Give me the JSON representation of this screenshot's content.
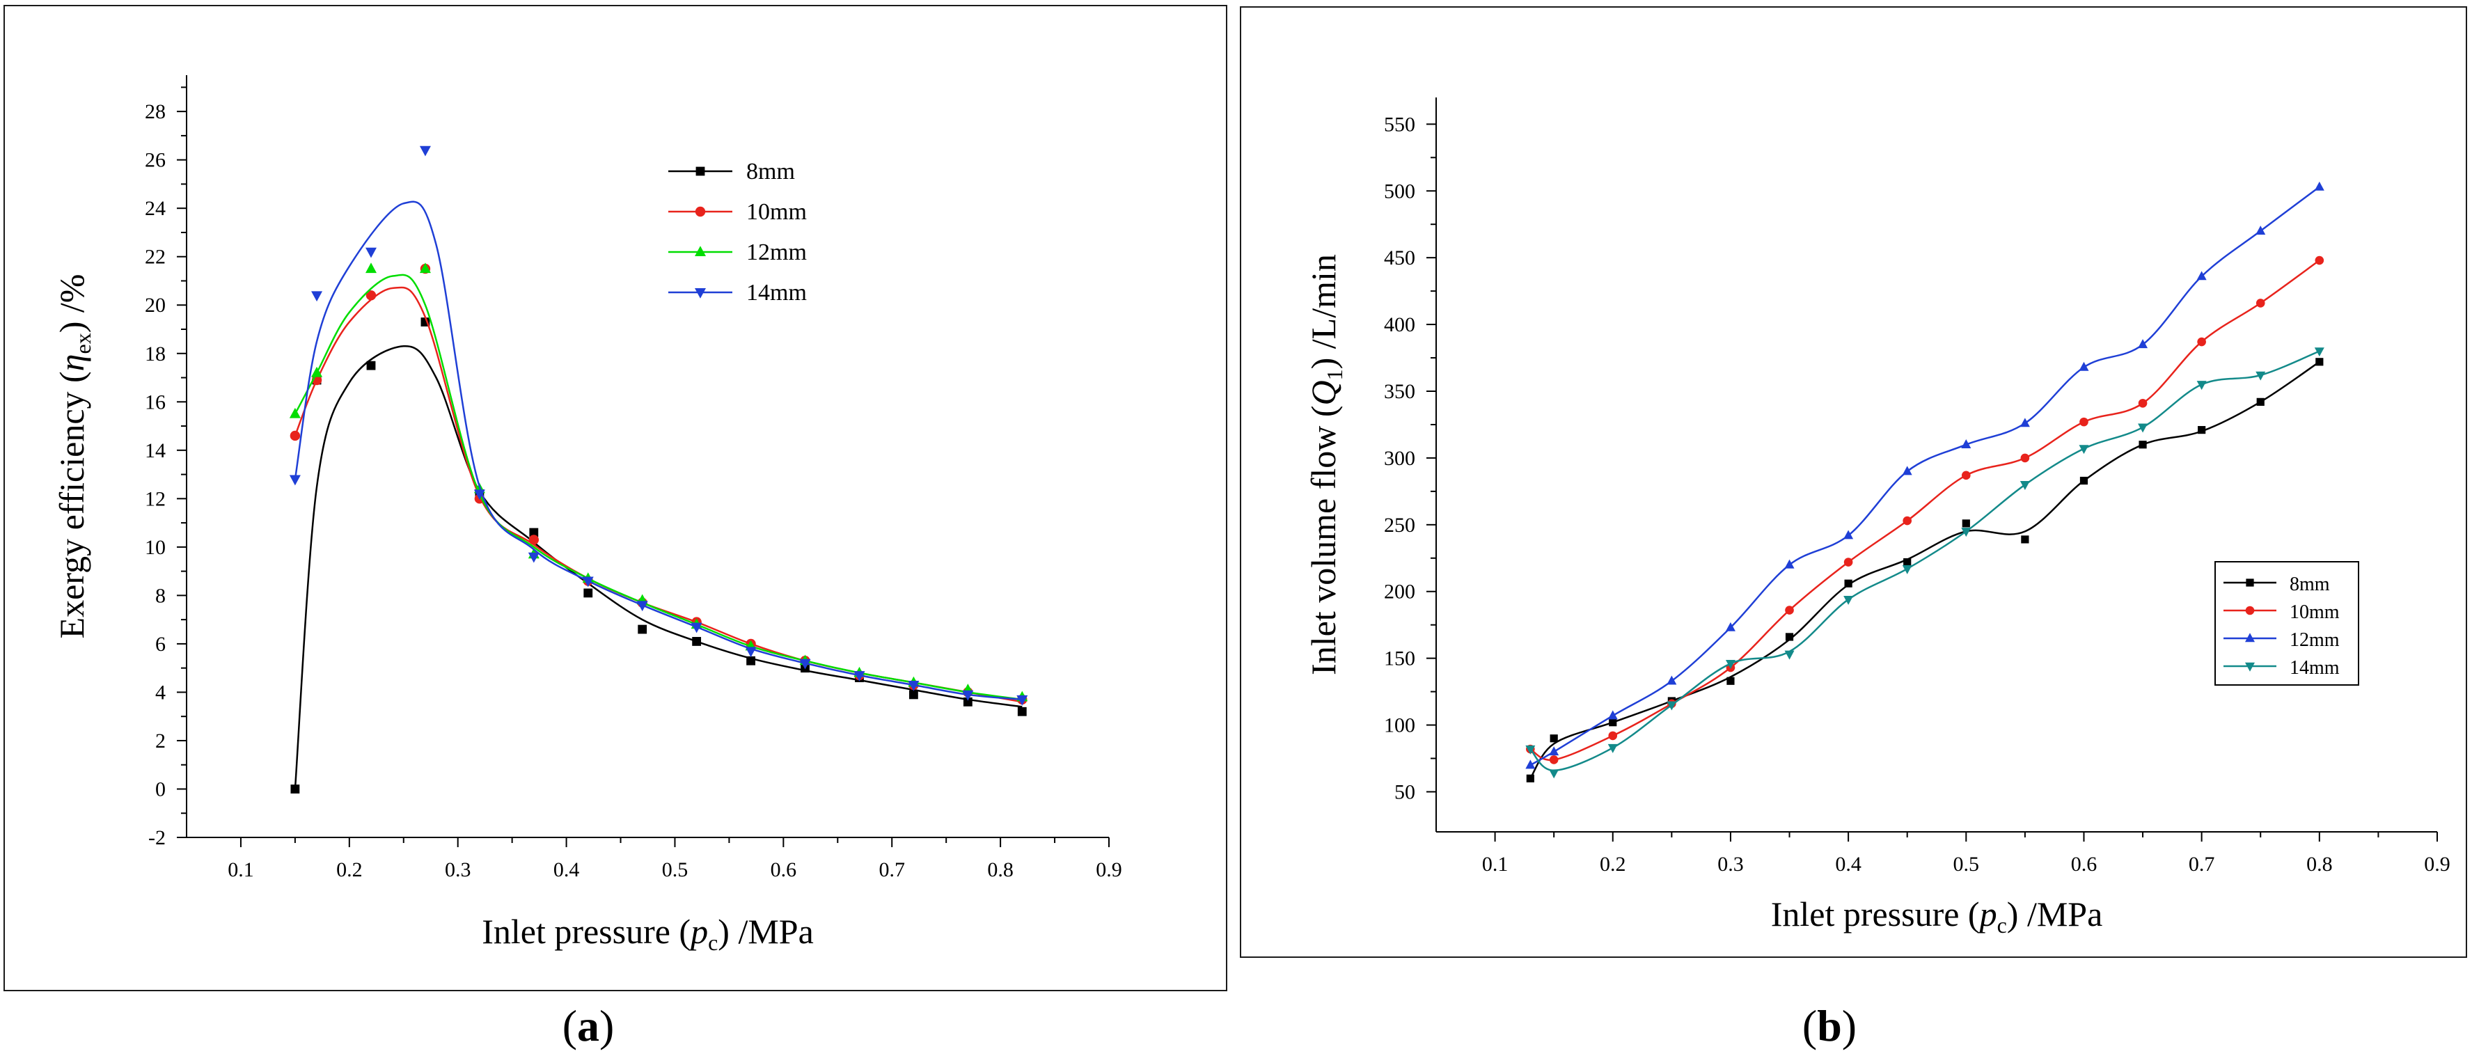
{
  "chart_data": [
    {
      "type": "line",
      "panel_label": "(a)",
      "panel_letter": "a",
      "xlabel": "Inlet pressure (pᶜ) /MPa",
      "xlabel_parts": {
        "before": "Inlet pressure (",
        "italic": "p",
        "sub": "c",
        "after": ") /MPa"
      },
      "ylabel": "Exergy efficiency (ηex) /%",
      "ylabel_parts": {
        "before": "Exergy efficiency (",
        "italic": "η",
        "sub": "ex",
        "after": ") /%"
      },
      "xlim": [
        0.05,
        0.9
      ],
      "ylim": [
        -2,
        29.5
      ],
      "xticks": [
        0.1,
        0.2,
        0.3,
        0.4,
        0.5,
        0.6,
        0.7,
        0.8,
        0.9
      ],
      "xtick_labels": [
        "0.1",
        "0.2",
        "0.3",
        "0.4",
        "0.5",
        "0.6",
        "0.7",
        "0.8",
        "0.9"
      ],
      "yticks": [
        -2,
        0,
        2,
        4,
        6,
        8,
        10,
        12,
        14,
        16,
        18,
        20,
        22,
        24,
        26,
        28
      ],
      "ytick_labels": [
        "-2",
        "0",
        "2",
        "4",
        "6",
        "8",
        "10",
        "12",
        "14",
        "16",
        "18",
        "20",
        "22",
        "24",
        "26",
        "28"
      ],
      "legend_position": "top-center",
      "series": [
        {
          "name": "8mm",
          "color": "#000000",
          "marker": "square",
          "x": [
            0.15,
            0.17,
            0.22,
            0.27,
            0.32,
            0.37,
            0.42,
            0.47,
            0.52,
            0.57,
            0.62,
            0.67,
            0.72,
            0.77,
            0.82
          ],
          "y": [
            0.0,
            16.9,
            17.5,
            19.3,
            12.2,
            10.6,
            8.1,
            6.6,
            6.1,
            5.3,
            5.0,
            4.6,
            3.9,
            3.6,
            3.2
          ],
          "curve_x": [
            0.15,
            0.17,
            0.2,
            0.25,
            0.28,
            0.32,
            0.37,
            0.42,
            0.47,
            0.52,
            0.57,
            0.62,
            0.67,
            0.72,
            0.77,
            0.82
          ],
          "curve_y": [
            0.0,
            12.5,
            16.8,
            18.3,
            17.0,
            12.3,
            10.2,
            8.5,
            7.0,
            6.1,
            5.4,
            4.9,
            4.5,
            4.1,
            3.7,
            3.4
          ]
        },
        {
          "name": "10mm",
          "color": "#e8231c",
          "marker": "circle",
          "x": [
            0.15,
            0.17,
            0.22,
            0.27,
            0.32,
            0.37,
            0.42,
            0.47,
            0.52,
            0.57,
            0.62,
            0.67,
            0.72,
            0.77,
            0.82
          ],
          "y": [
            14.6,
            16.9,
            20.4,
            21.5,
            12.0,
            10.3,
            8.6,
            7.7,
            6.9,
            6.0,
            5.3,
            4.7,
            4.3,
            4.0,
            3.7
          ],
          "curve_x": [
            0.15,
            0.17,
            0.2,
            0.24,
            0.27,
            0.32,
            0.37,
            0.42,
            0.47,
            0.52,
            0.57,
            0.62,
            0.67,
            0.72,
            0.77,
            0.82
          ],
          "curve_y": [
            14.6,
            16.9,
            19.3,
            20.7,
            19.5,
            12.1,
            10.1,
            8.7,
            7.7,
            6.9,
            6.0,
            5.3,
            4.8,
            4.4,
            4.0,
            3.6
          ]
        },
        {
          "name": "12mm",
          "color": "#00dd00",
          "marker": "triangle-up",
          "x": [
            0.15,
            0.17,
            0.22,
            0.27,
            0.32,
            0.37,
            0.42,
            0.47,
            0.52,
            0.57,
            0.62,
            0.67,
            0.72,
            0.77,
            0.82
          ],
          "y": [
            15.5,
            17.2,
            21.5,
            21.5,
            12.4,
            9.7,
            8.7,
            7.8,
            6.8,
            5.9,
            5.3,
            4.8,
            4.4,
            4.1,
            3.8
          ],
          "curve_x": [
            0.15,
            0.17,
            0.2,
            0.24,
            0.27,
            0.32,
            0.37,
            0.42,
            0.47,
            0.52,
            0.57,
            0.62,
            0.67,
            0.72,
            0.77,
            0.82
          ],
          "curve_y": [
            15.5,
            17.2,
            19.7,
            21.2,
            20.0,
            12.2,
            10.0,
            8.7,
            7.7,
            6.8,
            5.9,
            5.3,
            4.8,
            4.4,
            4.0,
            3.7
          ]
        },
        {
          "name": "14mm",
          "color": "#1f3fd6",
          "marker": "triangle-down",
          "x": [
            0.15,
            0.17,
            0.22,
            0.27,
            0.32,
            0.37,
            0.42,
            0.47,
            0.52,
            0.57,
            0.62,
            0.67,
            0.72,
            0.77,
            0.82
          ],
          "y": [
            12.8,
            20.4,
            22.2,
            26.4,
            12.2,
            9.6,
            8.6,
            7.6,
            6.7,
            5.7,
            5.2,
            4.7,
            4.3,
            3.9,
            3.7
          ],
          "curve_x": [
            0.15,
            0.17,
            0.2,
            0.25,
            0.28,
            0.32,
            0.37,
            0.42,
            0.47,
            0.52,
            0.57,
            0.62,
            0.67,
            0.72,
            0.77,
            0.82
          ],
          "curve_y": [
            12.8,
            18.5,
            21.6,
            24.2,
            22.5,
            12.5,
            9.9,
            8.6,
            7.6,
            6.7,
            5.8,
            5.2,
            4.7,
            4.3,
            3.9,
            3.7
          ]
        }
      ]
    },
    {
      "type": "line",
      "panel_label": "(b)",
      "panel_letter": "b",
      "xlabel": "Inlet pressure (pᶜ) /MPa",
      "xlabel_parts": {
        "before": "Inlet pressure (",
        "italic": "p",
        "sub": "c",
        "after": ") /MPa"
      },
      "ylabel": "Inlet volume flow (Q₁) /L/min",
      "ylabel_parts": {
        "before": "Inlet volume flow (",
        "italic": "Q",
        "sub": "1",
        "after": ") /L/min"
      },
      "xlim": [
        0.05,
        0.9
      ],
      "ylim": [
        20,
        570
      ],
      "xticks": [
        0.1,
        0.2,
        0.3,
        0.4,
        0.5,
        0.6,
        0.7,
        0.8,
        0.9
      ],
      "xtick_labels": [
        "0.1",
        "0.2",
        "0.3",
        "0.4",
        "0.5",
        "0.6",
        "0.7",
        "0.8",
        "0.9"
      ],
      "yticks": [
        50,
        100,
        150,
        200,
        250,
        300,
        350,
        400,
        450,
        500,
        550
      ],
      "ytick_labels": [
        "50",
        "100",
        "150",
        "200",
        "250",
        "300",
        "350",
        "400",
        "450",
        "500",
        "550"
      ],
      "legend_position": "bottom-right",
      "series": [
        {
          "name": "8mm",
          "color": "#000000",
          "marker": "square",
          "x": [
            0.13,
            0.15,
            0.2,
            0.25,
            0.3,
            0.35,
            0.4,
            0.45,
            0.5,
            0.55,
            0.6,
            0.65,
            0.7,
            0.75,
            0.8
          ],
          "y": [
            60,
            90,
            102,
            118,
            133,
            166,
            206,
            222,
            251,
            239,
            283,
            310,
            321,
            342,
            372
          ],
          "curve_x": [
            0.13,
            0.15,
            0.2,
            0.25,
            0.3,
            0.35,
            0.4,
            0.45,
            0.5,
            0.55,
            0.6,
            0.65,
            0.7,
            0.75,
            0.8
          ],
          "curve_y": [
            60,
            86,
            102,
            118,
            136,
            164,
            205,
            224,
            245,
            245,
            283,
            310,
            320,
            342,
            372
          ]
        },
        {
          "name": "10mm",
          "color": "#e8231c",
          "marker": "circle",
          "x": [
            0.13,
            0.15,
            0.2,
            0.25,
            0.3,
            0.35,
            0.4,
            0.45,
            0.5,
            0.55,
            0.6,
            0.65,
            0.7,
            0.75,
            0.8
          ],
          "y": [
            82,
            74,
            92,
            116,
            143,
            186,
            222,
            253,
            287,
            300,
            327,
            341,
            387,
            416,
            448
          ],
          "curve_x": [
            0.13,
            0.15,
            0.2,
            0.25,
            0.3,
            0.35,
            0.4,
            0.45,
            0.5,
            0.55,
            0.6,
            0.65,
            0.7,
            0.75,
            0.8
          ],
          "curve_y": [
            82,
            74,
            92,
            116,
            143,
            186,
            222,
            253,
            287,
            300,
            327,
            341,
            387,
            416,
            448
          ]
        },
        {
          "name": "12mm",
          "color": "#1f3fd6",
          "marker": "triangle-up",
          "x": [
            0.13,
            0.15,
            0.2,
            0.25,
            0.3,
            0.35,
            0.4,
            0.45,
            0.5,
            0.55,
            0.6,
            0.65,
            0.7,
            0.75,
            0.8
          ],
          "y": [
            70,
            80,
            107,
            133,
            173,
            220,
            242,
            290,
            310,
            326,
            368,
            385,
            436,
            470,
            503
          ],
          "curve_x": [
            0.13,
            0.15,
            0.2,
            0.25,
            0.3,
            0.35,
            0.4,
            0.45,
            0.5,
            0.55,
            0.6,
            0.65,
            0.7,
            0.75,
            0.8
          ],
          "curve_y": [
            70,
            80,
            107,
            133,
            173,
            220,
            242,
            290,
            310,
            326,
            368,
            385,
            436,
            470,
            503
          ]
        },
        {
          "name": "14mm",
          "color": "#138a8a",
          "marker": "triangle-down",
          "x": [
            0.13,
            0.15,
            0.2,
            0.25,
            0.3,
            0.35,
            0.4,
            0.45,
            0.5,
            0.55,
            0.6,
            0.65,
            0.7,
            0.75,
            0.8
          ],
          "y": [
            82,
            64,
            83,
            115,
            146,
            153,
            194,
            217,
            245,
            280,
            307,
            323,
            355,
            362,
            380
          ],
          "curve_x": [
            0.13,
            0.15,
            0.2,
            0.25,
            0.3,
            0.35,
            0.4,
            0.45,
            0.5,
            0.55,
            0.6,
            0.65,
            0.7,
            0.75,
            0.8
          ],
          "curve_y": [
            82,
            66,
            83,
            115,
            146,
            155,
            194,
            217,
            245,
            280,
            307,
            323,
            355,
            362,
            380
          ]
        }
      ]
    }
  ]
}
